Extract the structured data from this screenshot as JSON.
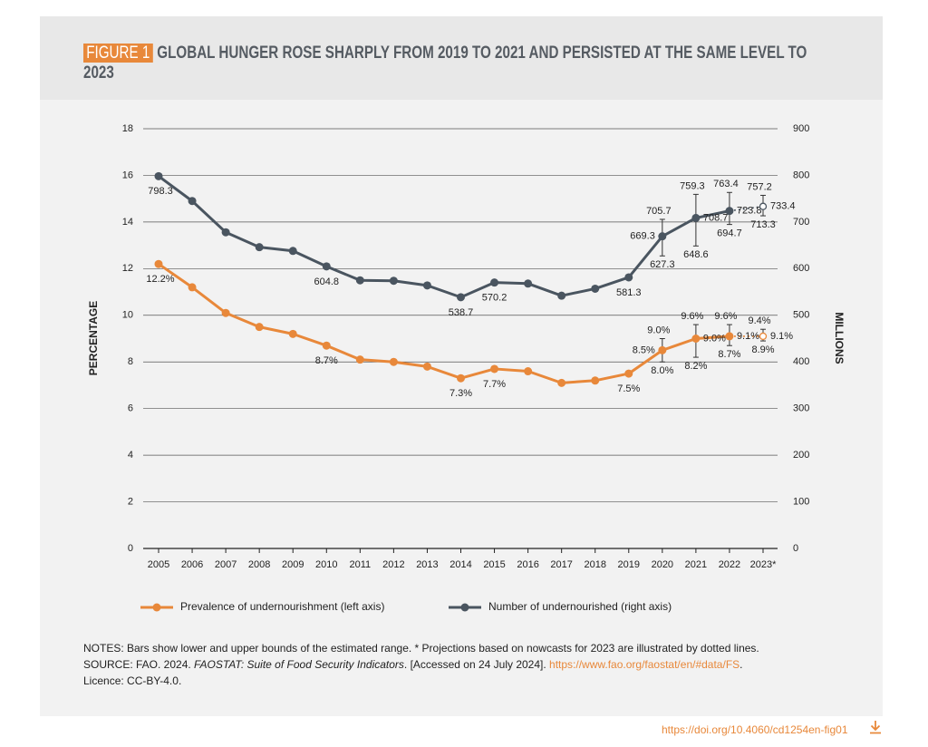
{
  "chart_data": {
    "type": "line",
    "figure_label": "FIGURE 1",
    "title": "GLOBAL HUNGER ROSE SHARPLY FROM 2019 TO 2021 AND PERSISTED AT THE SAME LEVEL TO 2023",
    "y_label": "PERCENTAGE",
    "y2_label": "MILLIONS",
    "categories": [
      "2005",
      "2006",
      "2007",
      "2008",
      "2009",
      "2010",
      "2011",
      "2012",
      "2013",
      "2014",
      "2015",
      "2016",
      "2017",
      "2018",
      "2019",
      "2020",
      "2021",
      "2022",
      "2023*"
    ],
    "ylim": [
      0,
      18
    ],
    "yticks": [
      0,
      2,
      4,
      6,
      8,
      10,
      12,
      14,
      16,
      18
    ],
    "y2lim": [
      0,
      900
    ],
    "y2ticks": [
      0,
      100,
      200,
      300,
      400,
      500,
      600,
      700,
      800,
      900
    ],
    "grid": true,
    "legend": "bottom",
    "series": [
      {
        "name": "Prevalence of undernourishment (left axis)",
        "color": "#e8883a",
        "axis": "y",
        "dotted_last": true,
        "values": [
          12.2,
          11.2,
          10.1,
          9.5,
          9.2,
          8.7,
          8.1,
          8.0,
          7.8,
          7.3,
          7.7,
          7.6,
          7.1,
          7.2,
          7.5,
          8.5,
          9.0,
          9.1,
          9.1
        ],
        "value_labels": [
          "12.2%",
          null,
          null,
          null,
          null,
          "8.7%",
          null,
          null,
          null,
          "7.3%",
          "7.7%",
          null,
          null,
          null,
          "7.5%",
          "8.5%",
          "9.0%",
          "9.1%",
          "9.1%"
        ],
        "lower": [
          null,
          null,
          null,
          null,
          null,
          null,
          null,
          null,
          null,
          null,
          null,
          null,
          null,
          null,
          null,
          8.0,
          8.2,
          8.7,
          8.9
        ],
        "upper": [
          null,
          null,
          null,
          null,
          null,
          null,
          null,
          null,
          null,
          null,
          null,
          null,
          null,
          null,
          null,
          9.0,
          9.6,
          9.6,
          9.4
        ],
        "lower_labels": [
          null,
          null,
          null,
          null,
          null,
          null,
          null,
          null,
          null,
          null,
          null,
          null,
          null,
          null,
          null,
          "8.0%",
          "8.2%",
          "8.7%",
          "8.9%"
        ],
        "upper_labels": [
          null,
          null,
          null,
          null,
          null,
          null,
          null,
          null,
          null,
          null,
          null,
          null,
          null,
          null,
          null,
          "9.0%",
          "9.6%",
          "9.6%",
          "9.4%"
        ]
      },
      {
        "name": "Number of undernourished (right axis)",
        "color": "#4a5560",
        "axis": "y2",
        "dotted_last": true,
        "values": [
          798.3,
          745,
          678,
          646,
          638,
          604.8,
          575,
          574,
          564,
          538.7,
          570.2,
          568,
          542,
          557,
          581.3,
          669.3,
          708.7,
          723.8,
          733.4
        ],
        "value_labels": [
          "798.3",
          null,
          null,
          null,
          null,
          "604.8",
          null,
          null,
          null,
          "538.7",
          "570.2",
          null,
          null,
          null,
          "581.3",
          "669.3",
          "708.7",
          "723.8",
          "733.4"
        ],
        "lower": [
          null,
          null,
          null,
          null,
          null,
          null,
          null,
          null,
          null,
          null,
          null,
          null,
          null,
          null,
          null,
          627.3,
          648.6,
          694.7,
          713.3
        ],
        "upper": [
          null,
          null,
          null,
          null,
          null,
          null,
          null,
          null,
          null,
          null,
          null,
          null,
          null,
          null,
          null,
          705.7,
          759.3,
          763.4,
          757.2
        ],
        "lower_labels": [
          null,
          null,
          null,
          null,
          null,
          null,
          null,
          null,
          null,
          null,
          null,
          null,
          null,
          null,
          null,
          "627.3",
          "648.6",
          "694.7",
          "713.3"
        ],
        "upper_labels": [
          null,
          null,
          null,
          null,
          null,
          null,
          null,
          null,
          null,
          null,
          null,
          null,
          null,
          null,
          null,
          "705.7",
          "759.3",
          "763.4",
          "757.2"
        ]
      }
    ]
  },
  "notes": {
    "line1": "NOTES: Bars show lower and upper bounds of the estimated range. * Projections based on nowcasts for 2023 are illustrated by dotted lines.",
    "source_prefix": "SOURCE: FAO. 2024. ",
    "source_title": "FAOSTAT: Suite of Food Security Indicators",
    "source_mid": ". [Accessed on 24 July 2024]. ",
    "source_link": "https://www.fao.org/faostat/en/#data/FS",
    "source_end": ".",
    "licence": "Licence: CC-BY-4.0."
  },
  "doi": "https://doi.org/10.4060/cd1254en-fig01"
}
